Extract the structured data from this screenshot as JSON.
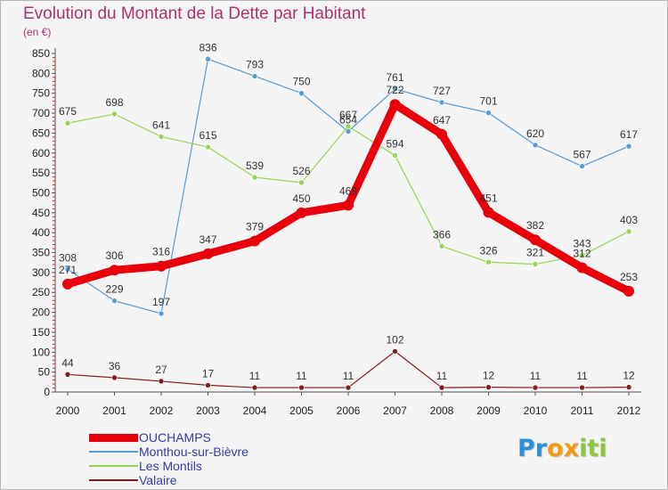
{
  "chart_data": {
    "type": "line",
    "title": "Evolution du Montant de la Dette par Habitant",
    "unit_label": "(en €)",
    "xlabel": "",
    "ylabel": "",
    "categories": [
      "2000",
      "2001",
      "2002",
      "2003",
      "2004",
      "2005",
      "2006",
      "2007",
      "2008",
      "2009",
      "2010",
      "2011",
      "2012"
    ],
    "ylim": [
      0,
      850
    ],
    "yticks": [
      0,
      50,
      100,
      150,
      200,
      250,
      300,
      350,
      400,
      450,
      500,
      550,
      600,
      650,
      700,
      750,
      800,
      850
    ],
    "grid": false,
    "legend_position": "bottom-left",
    "series": [
      {
        "name": "OUCHAMPS",
        "color": "#e8000b",
        "emphasis": true,
        "values": [
          271,
          306,
          316,
          347,
          379,
          450,
          469,
          722,
          647,
          451,
          382,
          312,
          253
        ]
      },
      {
        "name": "Monthou-sur-Bièvre",
        "color": "#5b9bd0",
        "emphasis": false,
        "values": [
          308,
          229,
          197,
          836,
          793,
          750,
          654,
          761,
          727,
          701,
          620,
          567,
          617
        ]
      },
      {
        "name": "Les Montils",
        "color": "#9ad35a",
        "emphasis": false,
        "values": [
          675,
          698,
          641,
          615,
          539,
          526,
          667,
          594,
          366,
          326,
          321,
          343,
          403
        ]
      },
      {
        "name": "Valaire",
        "color": "#7a1f1f",
        "emphasis": false,
        "values": [
          44,
          36,
          27,
          17,
          11,
          11,
          11,
          102,
          11,
          12,
          11,
          11,
          12
        ]
      }
    ]
  },
  "logo": {
    "letters": [
      "P",
      "r",
      "o",
      "x",
      "i",
      "t",
      "i"
    ],
    "colors": [
      "#2e8fd9",
      "#2e8fd9",
      "#f29a14",
      "#f29a14",
      "#8cc63f",
      "#8cc63f",
      "#8cc63f"
    ]
  }
}
